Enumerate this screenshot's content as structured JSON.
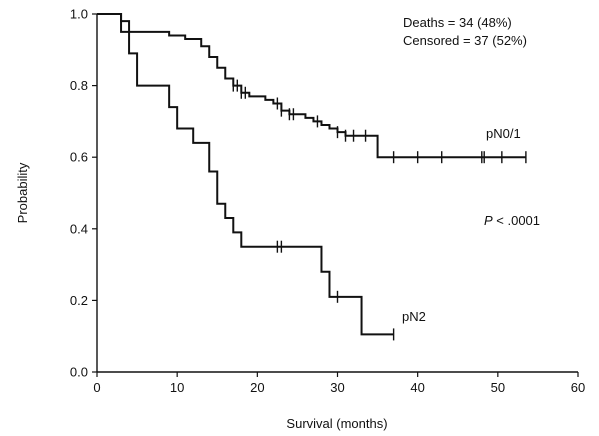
{
  "chart_data": {
    "type": "line",
    "title": "",
    "xlabel": "Survival (months)",
    "ylabel": "Probability",
    "xlim": [
      0,
      60
    ],
    "ylim": [
      0,
      1
    ],
    "xticks": [
      0,
      10,
      20,
      30,
      40,
      50,
      60
    ],
    "yticks": [
      0.0,
      0.2,
      0.4,
      0.6,
      0.8,
      1.0
    ],
    "xtick_labels": [
      "0",
      "10",
      "20",
      "30",
      "40",
      "50",
      "60"
    ],
    "ytick_labels": [
      "0.0",
      "0.2",
      "0.4",
      "0.6",
      "0.8",
      "1.0"
    ],
    "grid": false,
    "series": [
      {
        "name": "pN0/1",
        "x": [
          0,
          3,
          4,
          6,
          9,
          10,
          11,
          12,
          13,
          14,
          15,
          16,
          17,
          18,
          19,
          20,
          21,
          22,
          23,
          24,
          25,
          26,
          27,
          28,
          29,
          30,
          31,
          33,
          35,
          53.5
        ],
        "y": [
          1.0,
          0.98,
          0.95,
          0.95,
          0.94,
          0.94,
          0.93,
          0.93,
          0.91,
          0.88,
          0.85,
          0.82,
          0.8,
          0.78,
          0.77,
          0.77,
          0.76,
          0.75,
          0.73,
          0.72,
          0.72,
          0.71,
          0.7,
          0.69,
          0.68,
          0.67,
          0.66,
          0.66,
          0.6,
          0.6
        ],
        "censored_x": [
          17,
          17.5,
          18,
          18.5,
          22.5,
          23,
          24,
          24.5,
          27.5,
          30,
          31,
          32,
          33.5,
          37,
          40,
          43,
          48,
          48.3,
          50.5,
          53.5
        ]
      },
      {
        "name": "pN2",
        "x": [
          0,
          3,
          4,
          5,
          7,
          9,
          10,
          12,
          14,
          15,
          16,
          17,
          18,
          19,
          20,
          23,
          28,
          29,
          33,
          37
        ],
        "y": [
          1.0,
          0.95,
          0.89,
          0.8,
          0.8,
          0.74,
          0.68,
          0.64,
          0.56,
          0.47,
          0.43,
          0.39,
          0.35,
          0.35,
          0.35,
          0.35,
          0.28,
          0.21,
          0.105,
          0.105
        ],
        "censored_x": [
          22.5,
          23,
          30,
          37
        ]
      }
    ],
    "annotations": {
      "deaths": "Deaths = 34 (48%)",
      "censored": "Censored = 37 (52%)",
      "p_symbol": "P",
      "p_value": " < .0001"
    },
    "colors": {
      "line": "#111111",
      "background": "#ffffff"
    }
  }
}
